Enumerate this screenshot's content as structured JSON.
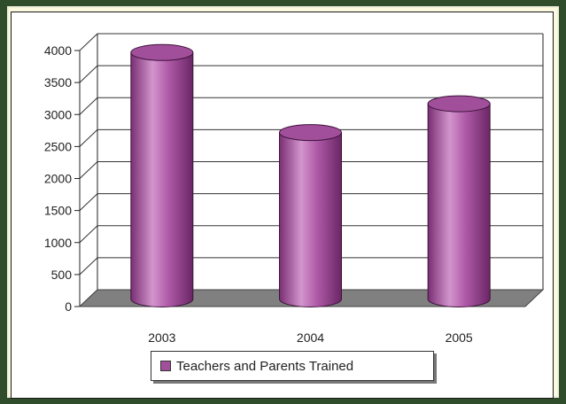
{
  "chart_data": {
    "type": "bar",
    "style": "3d-cylinder",
    "categories": [
      "2003",
      "2004",
      "2005"
    ],
    "series": [
      {
        "name": "Teachers and Parents Trained",
        "values": [
          3850,
          2600,
          3050
        ]
      }
    ],
    "y_ticks": [
      "0",
      "500",
      "1000",
      "1500",
      "2000",
      "2500",
      "3000",
      "3500",
      "4000"
    ],
    "ylim": [
      0,
      4000
    ],
    "grid": true,
    "legend_position": "bottom",
    "colors": {
      "bar": "#a24f9b",
      "bar_light": "#d89ad2",
      "bar_dark": "#6e2a69",
      "floor": "#808080",
      "gridline": "#333333"
    }
  },
  "legend": {
    "label": "Teachers and Parents Trained"
  }
}
